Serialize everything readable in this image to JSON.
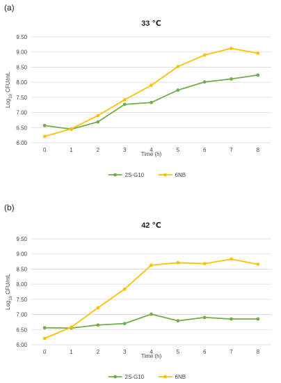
{
  "colors": {
    "2S-G10": "#70ad47",
    "6NB": "#ffc000",
    "grid": "#d9d9d9"
  },
  "chart_data": [
    {
      "type": "line",
      "panel_label": "(a)",
      "title": "33 ℃",
      "xlabel": "Time (h)",
      "ylabel_main": "Log",
      "ylabel_sub": "10",
      "ylabel_rest": " CFU/mL",
      "x": [
        0,
        1,
        2,
        3,
        4,
        5,
        6,
        7,
        8
      ],
      "x_tick_labels": [
        "0",
        "1",
        "2",
        "3",
        "4",
        "5",
        "6",
        "7",
        "8"
      ],
      "ylim": [
        6.0,
        9.5
      ],
      "y_tick_labels": [
        "6.00",
        "6.50",
        "7.00",
        "7.50",
        "8.00",
        "8.50",
        "9.00",
        "9.50"
      ],
      "grid": true,
      "legend_position": "bottom-center",
      "series": [
        {
          "name": "2S-G10",
          "color": "#70ad47",
          "values": [
            6.57,
            6.45,
            6.69,
            7.27,
            7.33,
            7.74,
            8.01,
            8.11,
            8.24
          ]
        },
        {
          "name": "6NB",
          "color": "#ffc000",
          "values": [
            6.21,
            6.46,
            6.9,
            7.42,
            7.9,
            8.52,
            8.9,
            9.12,
            8.96
          ]
        }
      ]
    },
    {
      "type": "line",
      "panel_label": "(b)",
      "title": "42 ℃",
      "xlabel": "Time (h)",
      "ylabel_main": "Log",
      "ylabel_sub": "10",
      "ylabel_rest": " CFU/mL",
      "x": [
        0,
        1,
        2,
        3,
        4,
        5,
        6,
        7,
        8
      ],
      "x_tick_labels": [
        "0",
        "1",
        "2",
        "3",
        "4",
        "5",
        "6",
        "7",
        "8"
      ],
      "ylim": [
        6.0,
        9.5
      ],
      "y_tick_labels": [
        "6.00",
        "6.50",
        "7.00",
        "7.50",
        "8.00",
        "8.50",
        "9.00",
        "9.50"
      ],
      "grid": true,
      "legend_position": "bottom-center",
      "series": [
        {
          "name": "2S-G10",
          "color": "#70ad47",
          "values": [
            6.56,
            6.55,
            6.65,
            6.7,
            7.01,
            6.79,
            6.9,
            6.85,
            6.85
          ]
        },
        {
          "name": "6NB",
          "color": "#ffc000",
          "values": [
            6.21,
            6.58,
            7.22,
            7.84,
            8.63,
            8.71,
            8.68,
            8.83,
            8.66
          ]
        }
      ]
    }
  ]
}
